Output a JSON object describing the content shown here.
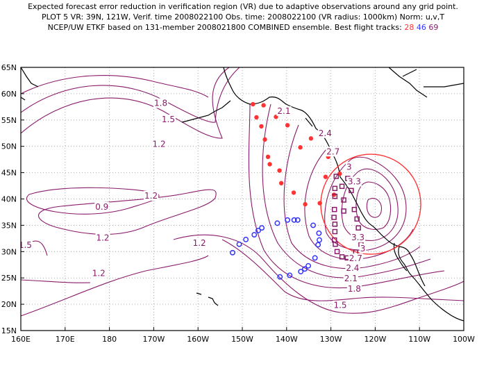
{
  "header": {
    "line1": "Expected forecast error reduction in verification region (VR) due to adaptive observations around any grid point.",
    "line2": "PLOT 5 VR: 39N, 121W, Verif. time 2008022100 Obs. time: 2008022100 (VR radius: 1000km) Norm: u,v,T",
    "line3_prefix": "NCEP/UW ETKF based on 131-member 2008021800 COMBINED ensemble.  Best flight tracks:",
    "track_red": "28",
    "track_blue": "46",
    "track_mag": "69"
  },
  "axes": {
    "lat_labels": [
      "65N",
      "60N",
      "55N",
      "50N",
      "45N",
      "40N",
      "35N",
      "30N",
      "25N",
      "20N",
      "15N"
    ],
    "lon_labels": [
      "160E",
      "170E",
      "180",
      "170W",
      "160W",
      "150W",
      "140W",
      "130W",
      "120W",
      "110W",
      "100W"
    ]
  },
  "contour_labels": [
    {
      "text": "1.8",
      "lon": -168.4,
      "lat": 58.2
    },
    {
      "text": "1.5",
      "lon": -166.7,
      "lat": 55.1
    },
    {
      "text": "1.2",
      "lon": -168.8,
      "lat": 50.4
    },
    {
      "text": "0.9",
      "lon": 178.3,
      "lat": 38.5
    },
    {
      "text": "1.2",
      "lon": -170.6,
      "lat": 40.6
    },
    {
      "text": "1.2",
      "lon": 178.5,
      "lat": 32.6
    },
    {
      "text": "1.5",
      "lon": 161.0,
      "lat": 31.2
    },
    {
      "text": "1.2",
      "lon": -159.7,
      "lat": 31.6
    },
    {
      "text": "1.2",
      "lon": 177.6,
      "lat": 25.9
    },
    {
      "text": "2.1",
      "lon": -140.6,
      "lat": 56.7
    },
    {
      "text": "2.4",
      "lon": -131.3,
      "lat": 52.5
    },
    {
      "text": "2.7",
      "lon": -129.5,
      "lat": 49.0
    },
    {
      "text": "3",
      "lon": -125.9,
      "lat": 46.1
    },
    {
      "text": "3.3",
      "lon": -124.7,
      "lat": 43.3
    },
    {
      "text": "3.3",
      "lon": -123.9,
      "lat": 32.7
    },
    {
      "text": "3",
      "lon": -122.8,
      "lat": 30.6
    },
    {
      "text": "2.7",
      "lon": -124.4,
      "lat": 28.7
    },
    {
      "text": "2.4",
      "lon": -125.1,
      "lat": 26.9
    },
    {
      "text": "2.1",
      "lon": -125.5,
      "lat": 24.9
    },
    {
      "text": "1.8",
      "lon": -124.7,
      "lat": 22.9
    },
    {
      "text": "1.5",
      "lon": -127.9,
      "lat": 19.8
    }
  ],
  "colors": {
    "contour": "#8a1a6a",
    "vr_circle": "#ff3333",
    "track_red": "#ff3333",
    "track_blue": "#3333ff",
    "track_mag": "#8a1a6a",
    "grid": "#9a9a9a",
    "coast": "#000000"
  },
  "verification_region": {
    "lat": 39,
    "lon": -121,
    "radius_km": 1000
  },
  "tracks": {
    "red": [
      [
        -147.6,
        58.0
      ],
      [
        -145.2,
        57.8
      ],
      [
        -142.4,
        55.6
      ],
      [
        -146.8,
        55.5
      ],
      [
        -145.7,
        53.8
      ],
      [
        -139.8,
        54.0
      ],
      [
        -134.5,
        51.5
      ],
      [
        -144.9,
        51.3
      ],
      [
        -136.9,
        49.8
      ],
      [
        -144.2,
        48.0
      ],
      [
        -130.6,
        48.0
      ],
      [
        -143.8,
        46.6
      ],
      [
        -141.6,
        45.4
      ],
      [
        -131.2,
        44.2
      ],
      [
        -128.0,
        44.8
      ],
      [
        -141.2,
        43.0
      ],
      [
        -138.4,
        41.2
      ],
      [
        -135.8,
        39.0
      ],
      [
        -132.5,
        39.2
      ],
      [
        -129.3,
        40.8
      ]
    ],
    "blue": [
      [
        -152.2,
        29.8
      ],
      [
        -150.7,
        31.4
      ],
      [
        -149.2,
        32.3
      ],
      [
        -147.3,
        33.2
      ],
      [
        -146.4,
        34.0
      ],
      [
        -145.6,
        34.5
      ],
      [
        -142.1,
        35.4
      ],
      [
        -139.8,
        36.0
      ],
      [
        -138.3,
        36.0
      ],
      [
        -137.5,
        36.0
      ],
      [
        -134.0,
        35.0
      ],
      [
        -132.7,
        33.5
      ],
      [
        -132.6,
        32.2
      ],
      [
        -132.9,
        31.3
      ],
      [
        -133.6,
        28.8
      ],
      [
        -135.1,
        27.3
      ],
      [
        -135.9,
        26.7
      ],
      [
        -136.8,
        26.2
      ],
      [
        -139.3,
        25.5
      ],
      [
        -141.5,
        25.2
      ]
    ],
    "mag": [
      [
        -128.8,
        44.3
      ],
      [
        -126.2,
        43.9
      ],
      [
        -127.5,
        42.4
      ],
      [
        -129.1,
        42.0
      ],
      [
        -125.4,
        41.6
      ],
      [
        -129.1,
        40.5
      ],
      [
        -127.1,
        39.8
      ],
      [
        -124.7,
        38.0
      ],
      [
        -129.2,
        38.0
      ],
      [
        -127.1,
        37.7
      ],
      [
        -129.3,
        36.5
      ],
      [
        -124.1,
        36.2
      ],
      [
        -129.1,
        35.2
      ],
      [
        -123.8,
        34.5
      ],
      [
        -129.1,
        33.8
      ],
      [
        -129.2,
        32.2
      ],
      [
        -123.2,
        31.4
      ],
      [
        -129.0,
        31.4
      ],
      [
        -128.6,
        30.0
      ],
      [
        -124.4,
        29.9
      ],
      [
        -125.1,
        29.0
      ],
      [
        -126.3,
        28.8
      ],
      [
        -127.5,
        29.0
      ]
    ]
  }
}
